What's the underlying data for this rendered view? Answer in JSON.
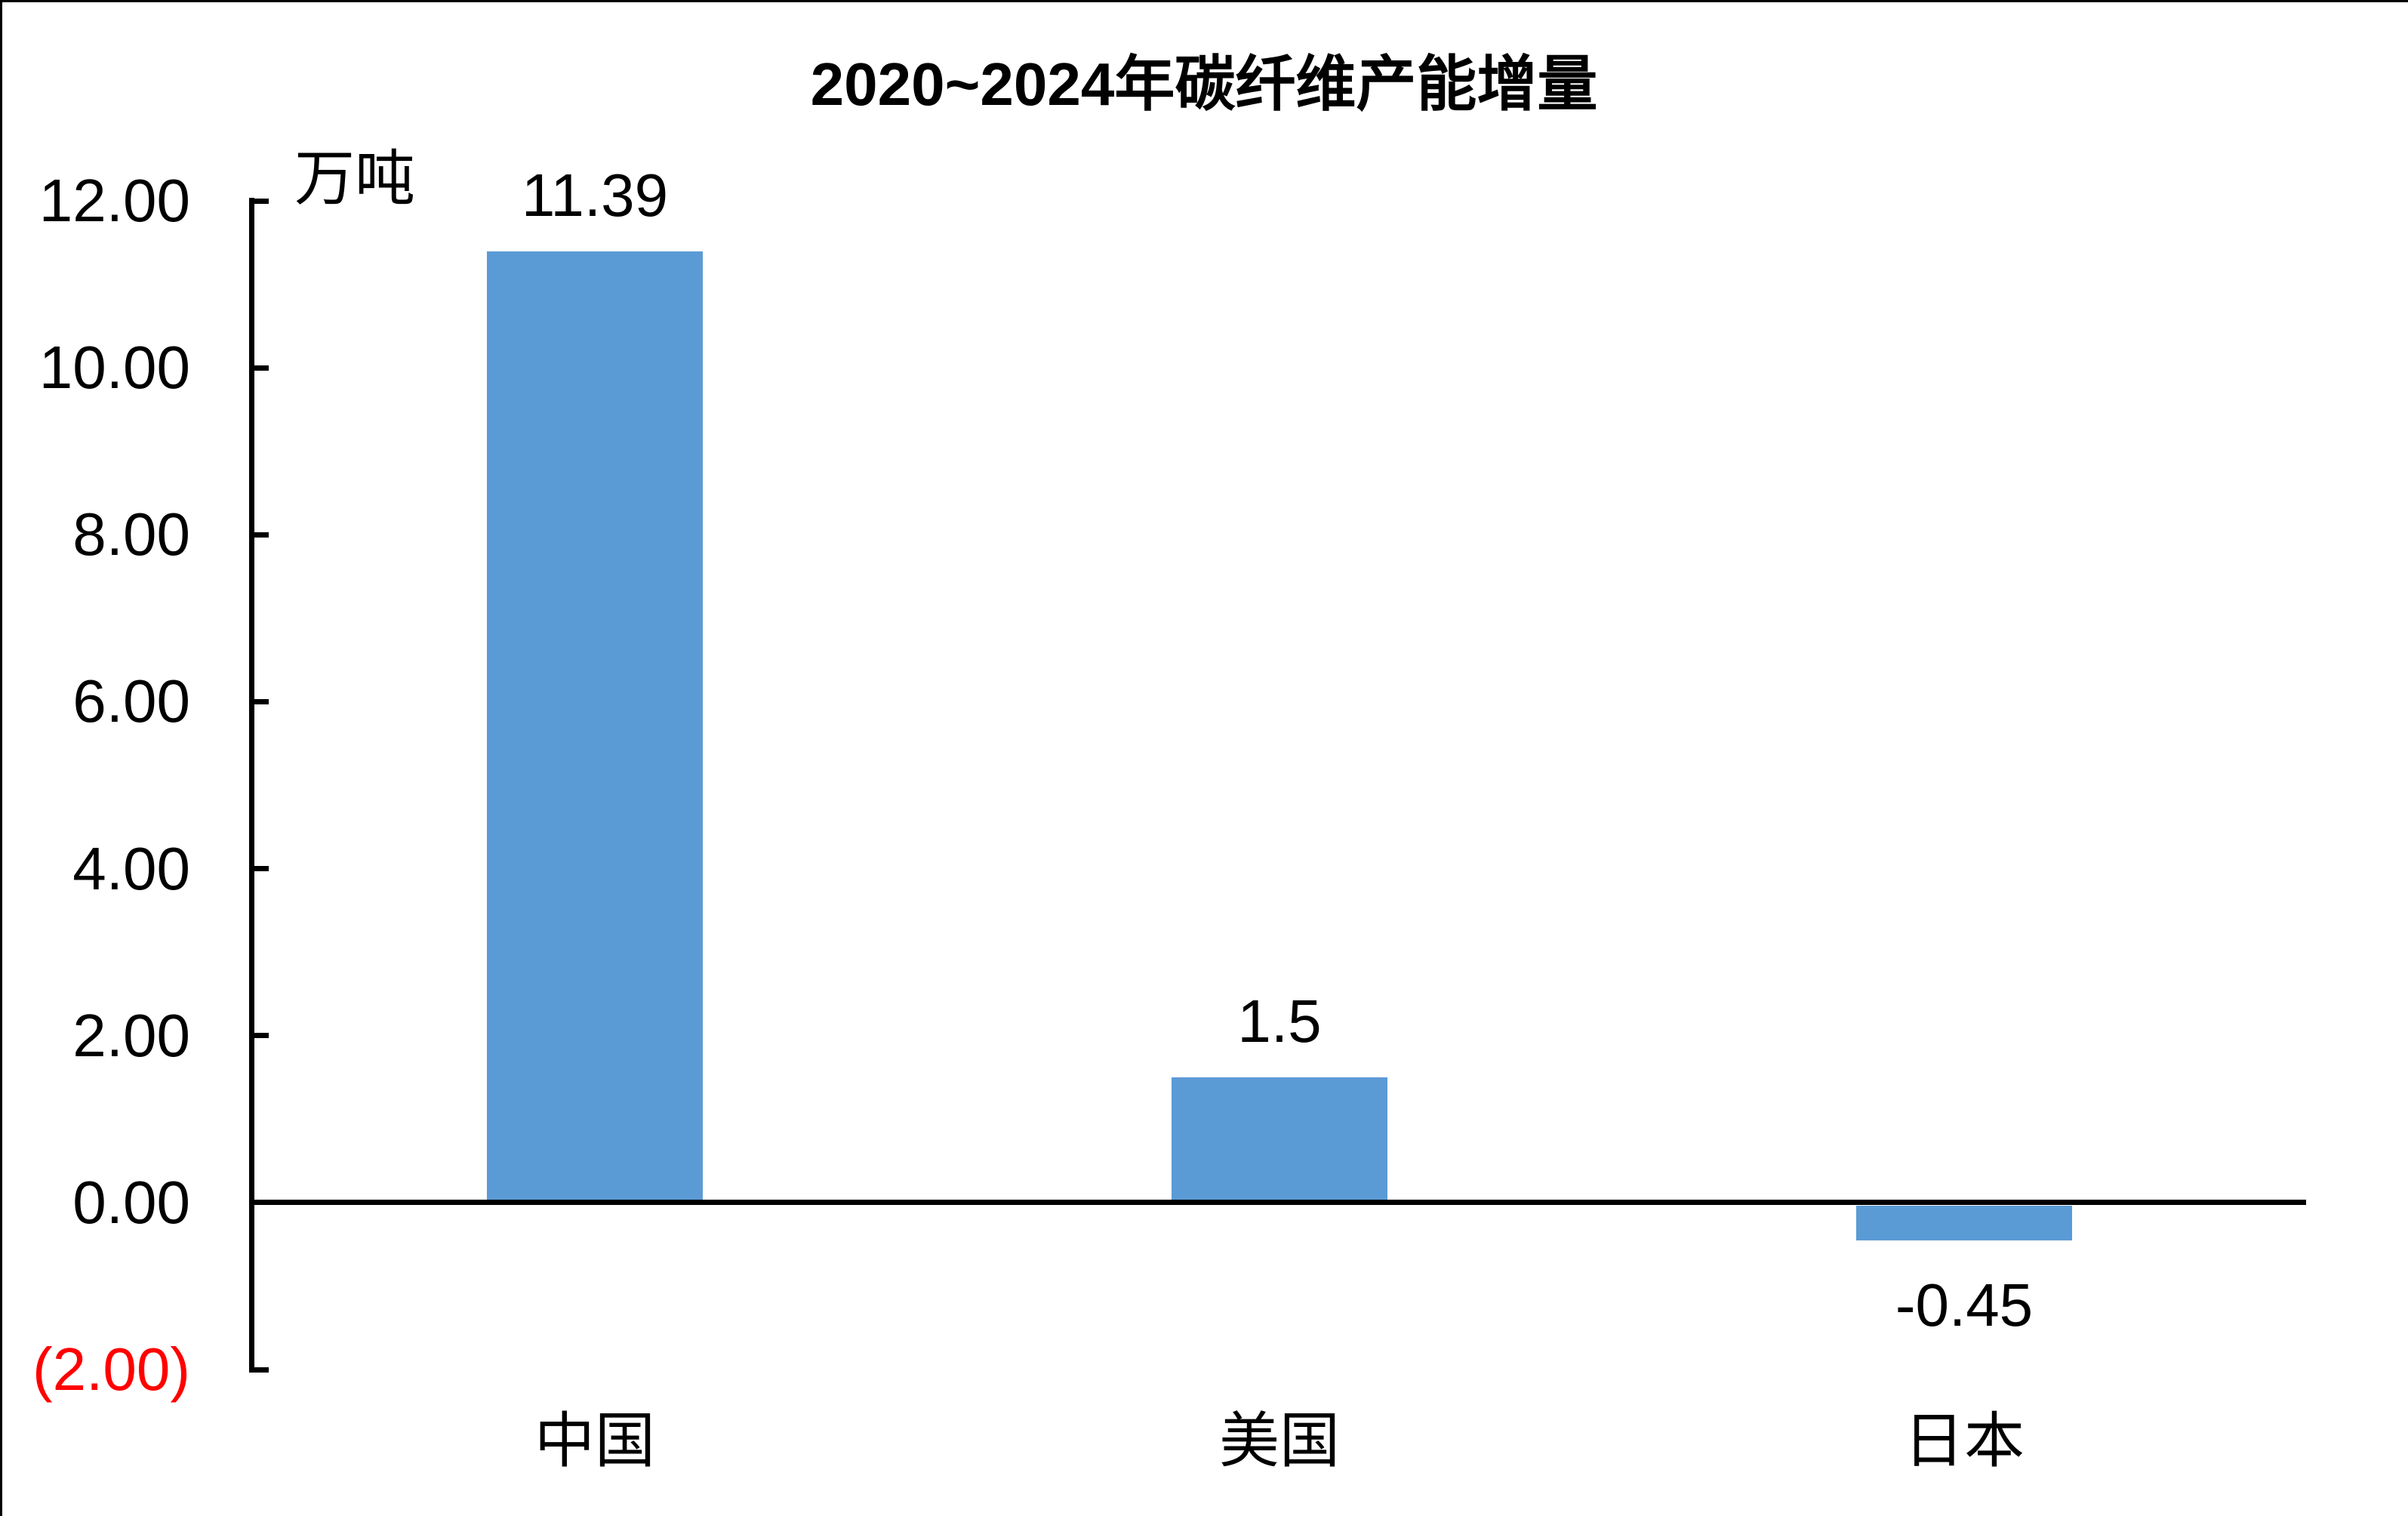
{
  "chart": {
    "title": "2020~2024年碳纤维产能增量",
    "unit_label": "万吨",
    "bar_color": "#5B9BD5",
    "axis_color": "#000000",
    "text_color": "#000000",
    "negative_tick_color": "#FF0000",
    "background_color": "#FFFFFF"
  },
  "chart_data": {
    "type": "bar",
    "title": "2020~2024年碳纤维产能增量",
    "ylabel": "万吨",
    "categories": [
      "中国",
      "美国",
      "日本"
    ],
    "values": [
      11.39,
      1.5,
      -0.45
    ],
    "data_labels": [
      "11.39",
      "1.5",
      "-0.45"
    ],
    "series": [
      {
        "name": "2020~2024年碳纤维产能增量",
        "values": [
          11.39,
          1.5,
          -0.45
        ]
      }
    ],
    "ylim": [
      -2,
      12
    ],
    "ytick_interval": 2,
    "yticks": [
      12,
      10,
      8,
      6,
      4,
      2,
      0,
      -2
    ],
    "ytick_labels": [
      "12.00",
      "10.00",
      "8.00",
      "6.00",
      "4.00",
      "2.00",
      "0.00",
      "(2.00)"
    ],
    "ytick_label_colors": [
      "#000000",
      "#000000",
      "#000000",
      "#000000",
      "#000000",
      "#000000",
      "#000000",
      "#FF0000"
    ],
    "grid": false,
    "legend_position": "none",
    "data_label_position": "outside_end",
    "tick_direction": "inside"
  }
}
